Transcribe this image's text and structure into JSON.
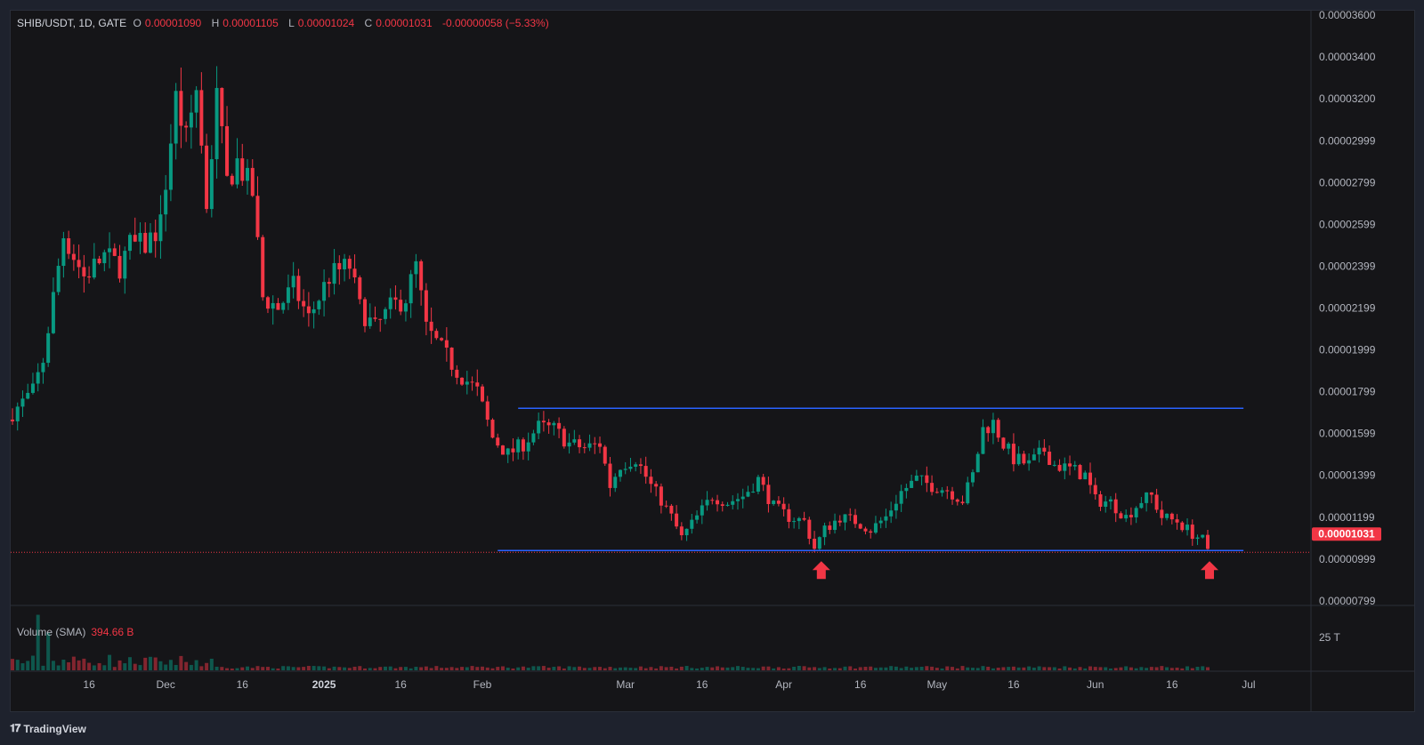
{
  "legend": {
    "symbol": "SHIB/USDT, 1D, GATE",
    "open_label": "O",
    "open": "0.00001090",
    "high_label": "H",
    "high": "0.00001105",
    "low_label": "L",
    "low": "0.00001024",
    "close_label": "C",
    "close": "0.00001031",
    "change": "-0.00000058 (−5.33%)"
  },
  "volume_legend": {
    "label": "Volume (SMA)",
    "value": "394.66 B"
  },
  "brand": {
    "icon": "tradingview-logo-icon",
    "name": "TradingView"
  },
  "colors": {
    "up": "#089981",
    "down": "#f23645",
    "level_line": "#2962ff",
    "last_price_bg": "#f23645",
    "arrow": "#f23645"
  },
  "chart_data": {
    "type": "candlestick",
    "title": "SHIB/USDT, 1D, GATE",
    "x_start": "2024-11-01",
    "x_end": "2025-06-23",
    "ylim": [
      7.9e-06,
      3.6e-05
    ],
    "y_ticks": [
      "0.00003600",
      "0.00003400",
      "0.00003200",
      "0.00002999",
      "0.00002799",
      "0.00002599",
      "0.00002399",
      "0.00002199",
      "0.00001999",
      "0.00001799",
      "0.00001599",
      "0.00001399",
      "0.00001199",
      "0.00000999",
      "0.00000799"
    ],
    "x_ticks": [
      {
        "date": "2024-11-16",
        "label": "16",
        "bold": false
      },
      {
        "date": "2024-12-01",
        "label": "Dec",
        "bold": false
      },
      {
        "date": "2024-12-16",
        "label": "16",
        "bold": false
      },
      {
        "date": "2025-01-01",
        "label": "2025",
        "bold": true
      },
      {
        "date": "2025-01-16",
        "label": "16",
        "bold": false
      },
      {
        "date": "2025-02-01",
        "label": "Feb",
        "bold": false
      },
      {
        "date": "2025-03-01",
        "label": "Mar",
        "bold": false
      },
      {
        "date": "2025-03-16",
        "label": "16",
        "bold": false
      },
      {
        "date": "2025-04-01",
        "label": "Apr",
        "bold": false
      },
      {
        "date": "2025-04-16",
        "label": "16",
        "bold": false
      },
      {
        "date": "2025-05-01",
        "label": "May",
        "bold": false
      },
      {
        "date": "2025-05-16",
        "label": "16",
        "bold": false
      },
      {
        "date": "2025-06-01",
        "label": "Jun",
        "bold": false
      },
      {
        "date": "2025-06-16",
        "label": "16",
        "bold": false
      },
      {
        "date": "2025-07-01",
        "label": "Jul",
        "bold": false
      }
    ],
    "close_path": [
      [
        "2024-11-01",
        1.7e-05
      ],
      [
        "2024-11-05",
        1.8e-05
      ],
      [
        "2024-11-07",
        1.95e-05
      ],
      [
        "2024-11-11",
        2.55e-05
      ],
      [
        "2024-11-13",
        2.45e-05
      ],
      [
        "2024-11-15",
        2.35e-05
      ],
      [
        "2024-11-17",
        2.4e-05
      ],
      [
        "2024-11-19",
        2.45e-05
      ],
      [
        "2024-11-22",
        2.4e-05
      ],
      [
        "2024-11-24",
        2.5e-05
      ],
      [
        "2024-11-27",
        2.5e-05
      ],
      [
        "2024-11-30",
        2.6e-05
      ],
      [
        "2024-12-03",
        3.2e-05
      ],
      [
        "2024-12-05",
        3e-05
      ],
      [
        "2024-12-07",
        3.25e-05
      ],
      [
        "2024-12-09",
        2.7e-05
      ],
      [
        "2024-12-11",
        3.2e-05
      ],
      [
        "2024-12-13",
        2.8e-05
      ],
      [
        "2024-12-15",
        2.9e-05
      ],
      [
        "2024-12-18",
        2.75e-05
      ],
      [
        "2024-12-20",
        2.25e-05
      ],
      [
        "2024-12-23",
        2.2e-05
      ],
      [
        "2024-12-26",
        2.3e-05
      ],
      [
        "2024-12-29",
        2.15e-05
      ],
      [
        "2024-12-31",
        2.25e-05
      ],
      [
        "2025-01-02",
        2.35e-05
      ],
      [
        "2025-01-04",
        2.38e-05
      ],
      [
        "2025-01-06",
        2.4e-05
      ],
      [
        "2025-01-08",
        2.2e-05
      ],
      [
        "2025-01-11",
        2.1e-05
      ],
      [
        "2025-01-14",
        2.2e-05
      ],
      [
        "2025-01-17",
        2.25e-05
      ],
      [
        "2025-01-19",
        2.4e-05
      ],
      [
        "2025-01-21",
        2.1e-05
      ],
      [
        "2025-01-24",
        2e-05
      ],
      [
        "2025-01-27",
        1.9e-05
      ],
      [
        "2025-01-31",
        1.8e-05
      ],
      [
        "2025-02-03",
        1.58e-05
      ],
      [
        "2025-02-06",
        1.5e-05
      ],
      [
        "2025-02-09",
        1.55e-05
      ],
      [
        "2025-02-12",
        1.63e-05
      ],
      [
        "2025-02-15",
        1.62e-05
      ],
      [
        "2025-02-18",
        1.55e-05
      ],
      [
        "2025-02-21",
        1.53e-05
      ],
      [
        "2025-02-24",
        1.55e-05
      ],
      [
        "2025-02-26",
        1.35e-05
      ],
      [
        "2025-02-28",
        1.45e-05
      ],
      [
        "2025-03-03",
        1.48e-05
      ],
      [
        "2025-03-06",
        1.35e-05
      ],
      [
        "2025-03-08",
        1.28e-05
      ],
      [
        "2025-03-10",
        1.2e-05
      ],
      [
        "2025-03-12",
        1.1e-05
      ],
      [
        "2025-03-15",
        1.2e-05
      ],
      [
        "2025-03-18",
        1.3e-05
      ],
      [
        "2025-03-21",
        1.27e-05
      ],
      [
        "2025-03-24",
        1.3e-05
      ],
      [
        "2025-03-27",
        1.38e-05
      ],
      [
        "2025-03-30",
        1.25e-05
      ],
      [
        "2025-04-02",
        1.2e-05
      ],
      [
        "2025-04-05",
        1.18e-05
      ],
      [
        "2025-04-07",
        1.05e-05
      ],
      [
        "2025-04-09",
        1.14e-05
      ],
      [
        "2025-04-12",
        1.2e-05
      ],
      [
        "2025-04-15",
        1.18e-05
      ],
      [
        "2025-04-18",
        1.14e-05
      ],
      [
        "2025-04-21",
        1.2e-05
      ],
      [
        "2025-04-24",
        1.32e-05
      ],
      [
        "2025-04-27",
        1.38e-05
      ],
      [
        "2025-04-30",
        1.35e-05
      ],
      [
        "2025-05-03",
        1.33e-05
      ],
      [
        "2025-05-06",
        1.28e-05
      ],
      [
        "2025-05-08",
        1.4e-05
      ],
      [
        "2025-05-10",
        1.62e-05
      ],
      [
        "2025-05-12",
        1.65e-05
      ],
      [
        "2025-05-14",
        1.55e-05
      ],
      [
        "2025-05-16",
        1.48e-05
      ],
      [
        "2025-05-19",
        1.45e-05
      ],
      [
        "2025-05-22",
        1.52e-05
      ],
      [
        "2025-05-24",
        1.45e-05
      ],
      [
        "2025-05-27",
        1.43e-05
      ],
      [
        "2025-05-30",
        1.4e-05
      ],
      [
        "2025-06-01",
        1.28e-05
      ],
      [
        "2025-06-04",
        1.27e-05
      ],
      [
        "2025-06-07",
        1.2e-05
      ],
      [
        "2025-06-10",
        1.28e-05
      ],
      [
        "2025-06-12",
        1.3e-05
      ],
      [
        "2025-06-14",
        1.2e-05
      ],
      [
        "2025-06-17",
        1.18e-05
      ],
      [
        "2025-06-20",
        1.12e-05
      ],
      [
        "2025-06-22",
        1.09e-05
      ],
      [
        "2025-06-23",
        1.03e-05
      ]
    ],
    "resistance": {
      "from": "2025-02-08",
      "to": "2025-06-30",
      "price": 1.72e-05
    },
    "support": {
      "from": "2025-02-04",
      "to": "2025-06-30",
      "price": 1.04e-05
    },
    "current_price_line": 1.031e-05,
    "last_price_label": "0.00001031",
    "arrows": [
      {
        "date": "2025-04-08"
      },
      {
        "date": "2025-06-23"
      }
    ],
    "volume": {
      "label": "Volume (SMA)",
      "sma": "394.66 B",
      "tick": "25 T"
    }
  }
}
